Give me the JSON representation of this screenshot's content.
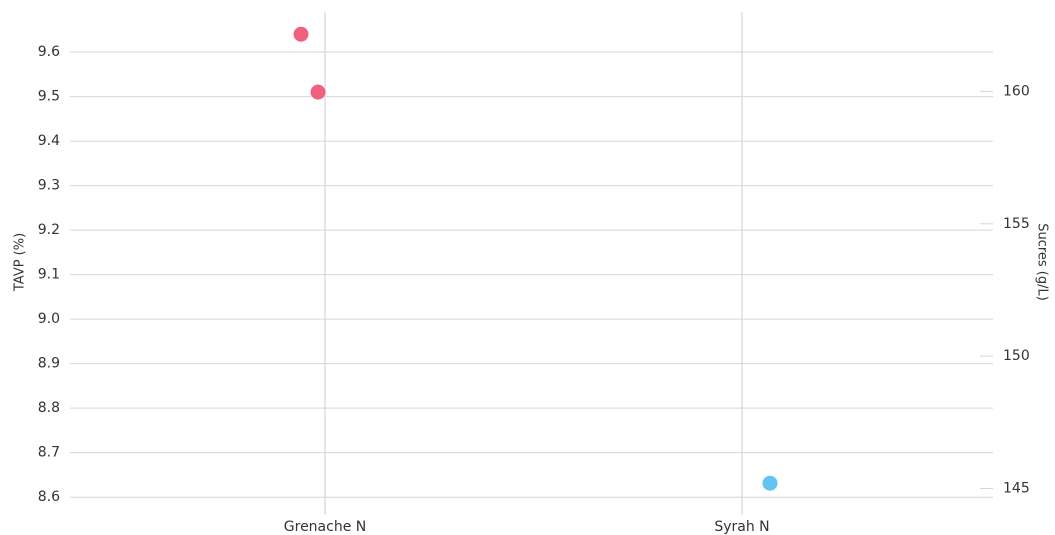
{
  "chart_data": {
    "type": "scatter",
    "categories": [
      "Grenache N",
      "Syrah N"
    ],
    "ylabel": "TAVP (%)",
    "y2label": "Sucres (g/L)",
    "ylim": [
      8.56,
      9.69
    ],
    "yticks": [
      8.6,
      8.7,
      8.8,
      8.9,
      {
        "value": 9,
        "label": "9.0"
      },
      9.1,
      9.2,
      9.3,
      9.4,
      9.5,
      9.6
    ],
    "y2lim": [
      144,
      163
    ],
    "y2ticks": [
      145,
      150,
      155,
      160
    ],
    "grid": true,
    "series": [
      {
        "color": "#ee5a78",
        "x": [
          "Grenache N",
          "Grenache N"
        ],
        "values": [
          9.64,
          9.51
        ]
      },
      {
        "color": "#5bc0f0",
        "axis": "y2",
        "x": [
          "Syrah N"
        ],
        "values": [
          145.2
        ]
      }
    ]
  }
}
